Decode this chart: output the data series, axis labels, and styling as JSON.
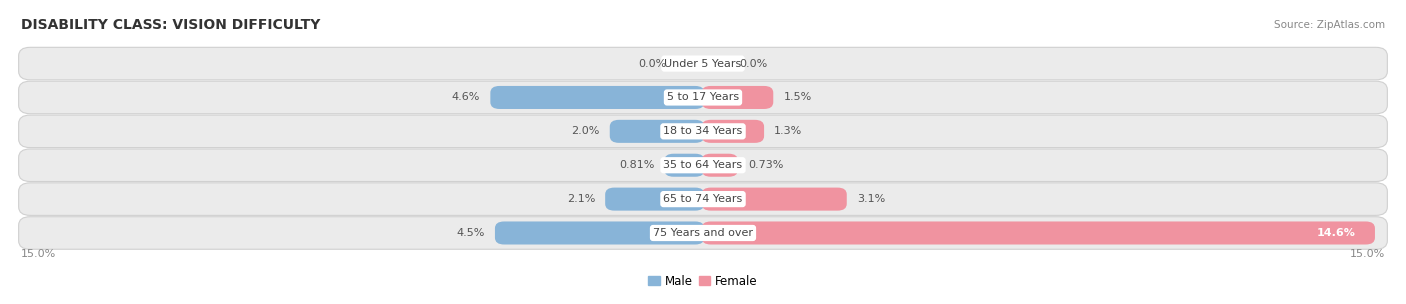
{
  "title": "DISABILITY CLASS: VISION DIFFICULTY",
  "source": "Source: ZipAtlas.com",
  "categories": [
    "Under 5 Years",
    "5 to 17 Years",
    "18 to 34 Years",
    "35 to 64 Years",
    "65 to 74 Years",
    "75 Years and over"
  ],
  "male_values": [
    0.0,
    4.6,
    2.0,
    0.81,
    2.1,
    4.5
  ],
  "female_values": [
    0.0,
    1.5,
    1.3,
    0.73,
    3.1,
    14.6
  ],
  "male_labels": [
    "0.0%",
    "4.6%",
    "2.0%",
    "0.81%",
    "2.1%",
    "4.5%"
  ],
  "female_labels": [
    "0.0%",
    "1.5%",
    "1.3%",
    "0.73%",
    "3.1%",
    "14.6%"
  ],
  "male_color": "#88b4d8",
  "female_color": "#f093a0",
  "female_color_dark": "#e8607a",
  "row_bg_color": "#ebebeb",
  "max_val": 15.0,
  "axis_label_left": "15.0%",
  "axis_label_right": "15.0%",
  "title_fontsize": 10,
  "label_fontsize": 8,
  "category_fontsize": 8,
  "legend_fontsize": 8.5,
  "source_fontsize": 7.5
}
